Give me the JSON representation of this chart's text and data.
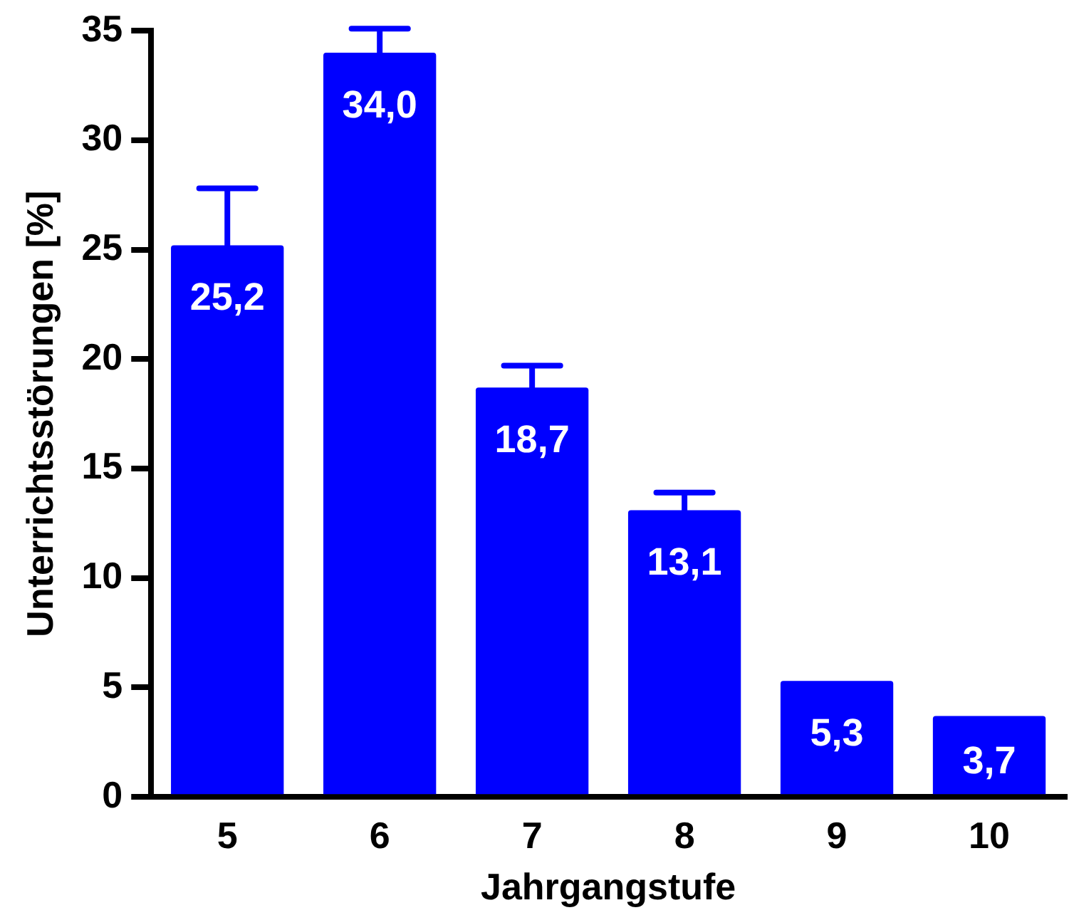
{
  "chart_data": {
    "type": "bar",
    "xlabel": "Jahrgangstufe",
    "ylabel": "Unterrichtsstörungen [%]",
    "categories": [
      "5",
      "6",
      "7",
      "8",
      "9",
      "10"
    ],
    "values": [
      25.2,
      34.0,
      18.7,
      13.1,
      5.3,
      3.7
    ],
    "value_labels": [
      "25,2",
      "34,0",
      "18,7",
      "13,1",
      "5,3",
      "3,7"
    ],
    "errors": [
      [
        25.2,
        27.8
      ],
      [
        34.0,
        35.1
      ],
      [
        18.7,
        19.7
      ],
      [
        13.1,
        13.9
      ],
      null,
      null
    ],
    "color": "#0000ff",
    "ylim": [
      0,
      35
    ],
    "yticks": [
      0,
      5,
      10,
      15,
      20,
      25,
      30,
      35
    ],
    "grid": false,
    "legend": false
  }
}
